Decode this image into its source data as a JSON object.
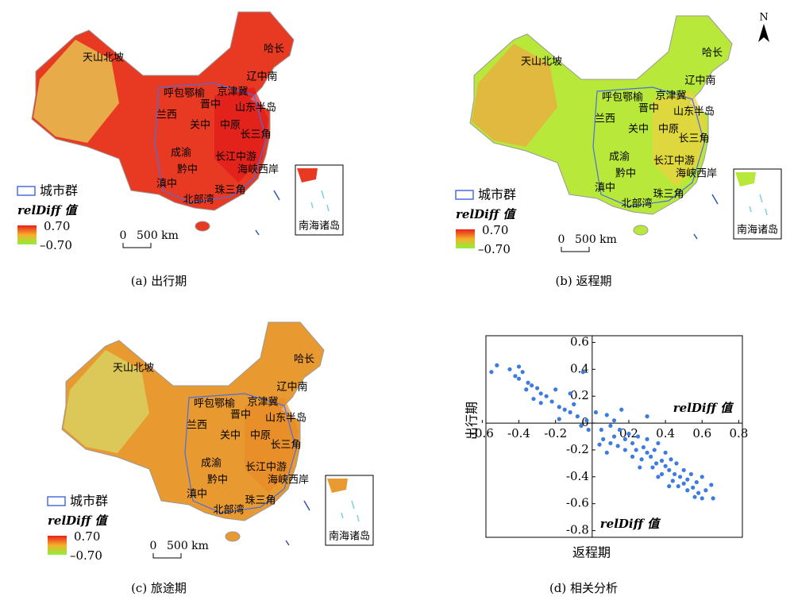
{
  "maps": [
    {
      "caption": "(a) 出行期",
      "labels": [
        "天山北坡",
        "哈长",
        "辽中南",
        "呼包鄂榆",
        "京津冀",
        "晋中",
        "山东半岛",
        "兰西",
        "关中",
        "中原",
        "长三角",
        "成渝",
        "长江中游",
        "黔中",
        "海峡西岸",
        "滇中",
        "珠三角",
        "北部湾"
      ],
      "legend_group": "城市群",
      "legend_title": "relDiff 值",
      "legend_max": "0.70",
      "legend_min": "–0.70",
      "scale_zero": "0",
      "scale_label": "500 km",
      "inset": "南海诸岛"
    },
    {
      "caption": "(b) 返程期",
      "labels": [
        "天山北坡",
        "哈长",
        "辽中南",
        "呼包鄂榆",
        "京津冀",
        "晋中",
        "山东半岛",
        "兰西",
        "关中",
        "中原",
        "长三角",
        "成渝",
        "长江中游",
        "黔中",
        "海峡西岸",
        "滇中",
        "珠三角",
        "北部湾"
      ],
      "legend_group": "城市群",
      "legend_title": "relDiff 值",
      "legend_max": "0.70",
      "legend_min": "–0.70",
      "scale_zero": "0",
      "scale_label": "500 km",
      "inset": "南海诸岛",
      "north": "N"
    },
    {
      "caption": "(c) 旅途期",
      "labels": [
        "天山北坡",
        "哈长",
        "辽中南",
        "呼包鄂榆",
        "京津冀",
        "晋中",
        "山东半岛",
        "兰西",
        "关中",
        "中原",
        "长三角",
        "成渝",
        "长江中游",
        "黔中",
        "海峡西岸",
        "滇中",
        "珠三角",
        "北部湾"
      ],
      "legend_group": "城市群",
      "legend_title": "relDiff 值",
      "legend_max": "0.70",
      "legend_min": "–0.70",
      "scale_zero": "0",
      "scale_label": "500 km",
      "inset": "南海诸岛"
    }
  ],
  "chart_data": {
    "type": "scatter",
    "caption": "(d) 相关分析",
    "xlabel": "返程期",
    "ylabel": "出行期",
    "annotations": [
      "relDiff 值",
      "relDiff 值"
    ],
    "color": "#3d7be0",
    "xlim": [
      -0.58,
      0.82
    ],
    "ylim": [
      -0.85,
      0.65
    ],
    "xticks": [
      -0.6,
      -0.4,
      -0.2,
      0.2,
      0.4,
      0.6,
      0.8
    ],
    "yticks": [
      -0.8,
      -0.6,
      -0.4,
      -0.2,
      0,
      0.2,
      0.4,
      0.6
    ],
    "x": [
      -0.52,
      -0.55,
      -0.45,
      -0.42,
      -0.4,
      -0.38,
      -0.35,
      -0.33,
      -0.3,
      -0.28,
      -0.36,
      -0.32,
      -0.25,
      -0.22,
      -0.2,
      -0.18,
      -0.15,
      -0.12,
      -0.1,
      -0.08,
      -0.05,
      -0.03,
      -0.06,
      -0.12,
      -0.28,
      -0.18,
      -0.02,
      0.02,
      0.05,
      0.08,
      0.1,
      0.12,
      0.15,
      0.18,
      0.2,
      0.22,
      0.24,
      0.25,
      0.28,
      0.3,
      0.3,
      0.32,
      0.34,
      0.35,
      0.36,
      0.38,
      0.4,
      0.4,
      0.42,
      0.43,
      0.45,
      0.46,
      0.48,
      0.5,
      0.5,
      0.52,
      0.54,
      0.55,
      0.57,
      0.58,
      0.6,
      0.62,
      0.65,
      0.66,
      0.6,
      0.56,
      0.47,
      0.44,
      0.38,
      0.33,
      0.27,
      0.22,
      0.18,
      0.14,
      0.1,
      0.06,
      0.04,
      0.08,
      0.26,
      0.36,
      0.42,
      0.52,
      0.16,
      0.3,
      0.12,
      -0.4
    ],
    "y": [
      0.43,
      0.38,
      0.4,
      0.35,
      0.33,
      0.38,
      0.3,
      0.28,
      0.26,
      0.22,
      0.25,
      0.18,
      0.2,
      0.16,
      0.25,
      0.12,
      0.1,
      0.08,
      0.14,
      0.05,
      0.38,
      0.02,
      -0.02,
      0.22,
      0.15,
      0.03,
      -0.05,
      0.08,
      -0.05,
      0.06,
      -0.02,
      -0.1,
      -0.05,
      -0.12,
      -0.08,
      -0.15,
      -0.2,
      -0.1,
      -0.18,
      -0.22,
      -0.12,
      -0.25,
      -0.2,
      -0.3,
      -0.15,
      -0.28,
      -0.32,
      -0.22,
      -0.35,
      -0.27,
      -0.38,
      -0.3,
      -0.4,
      -0.35,
      -0.45,
      -0.42,
      -0.38,
      -0.48,
      -0.44,
      -0.52,
      -0.4,
      -0.5,
      -0.46,
      -0.56,
      -0.56,
      -0.55,
      -0.47,
      -0.43,
      -0.38,
      -0.33,
      -0.27,
      -0.25,
      -0.2,
      -0.17,
      -0.15,
      -0.12,
      -0.16,
      -0.22,
      -0.33,
      -0.4,
      -0.47,
      -0.5,
      0.1,
      0.05,
      0.02,
      0.42
    ]
  }
}
